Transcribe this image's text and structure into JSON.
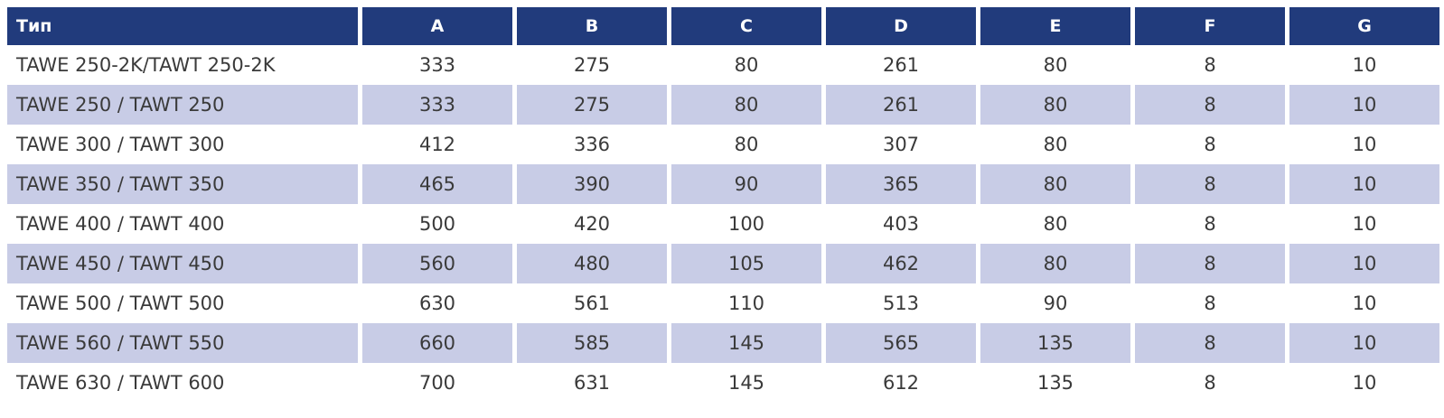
{
  "table": {
    "columns": [
      "Тип",
      "A",
      "B",
      "C",
      "D",
      "E",
      "F",
      "G"
    ],
    "rows": [
      [
        "TAWE 250-2K/TAWT 250-2K",
        333,
        275,
        80,
        261,
        80,
        8,
        10
      ],
      [
        "TAWE 250 / TAWT 250",
        333,
        275,
        80,
        261,
        80,
        8,
        10
      ],
      [
        "TAWE 300 / TAWT 300",
        412,
        336,
        80,
        307,
        80,
        8,
        10
      ],
      [
        "TAWE 350 / TAWT 350",
        465,
        390,
        90,
        365,
        80,
        8,
        10
      ],
      [
        "TAWE 400 / TAWT 400",
        500,
        420,
        100,
        403,
        80,
        8,
        10
      ],
      [
        "TAWE 450 / TAWT 450",
        560,
        480,
        105,
        462,
        80,
        8,
        10
      ],
      [
        "TAWE 500 / TAWT 500",
        630,
        561,
        110,
        513,
        90,
        8,
        10
      ],
      [
        "TAWE 560 / TAWT 550",
        660,
        585,
        145,
        565,
        135,
        8,
        10
      ],
      [
        "TAWE 630 / TAWT 600",
        700,
        631,
        145,
        612,
        135,
        8,
        10
      ]
    ]
  }
}
